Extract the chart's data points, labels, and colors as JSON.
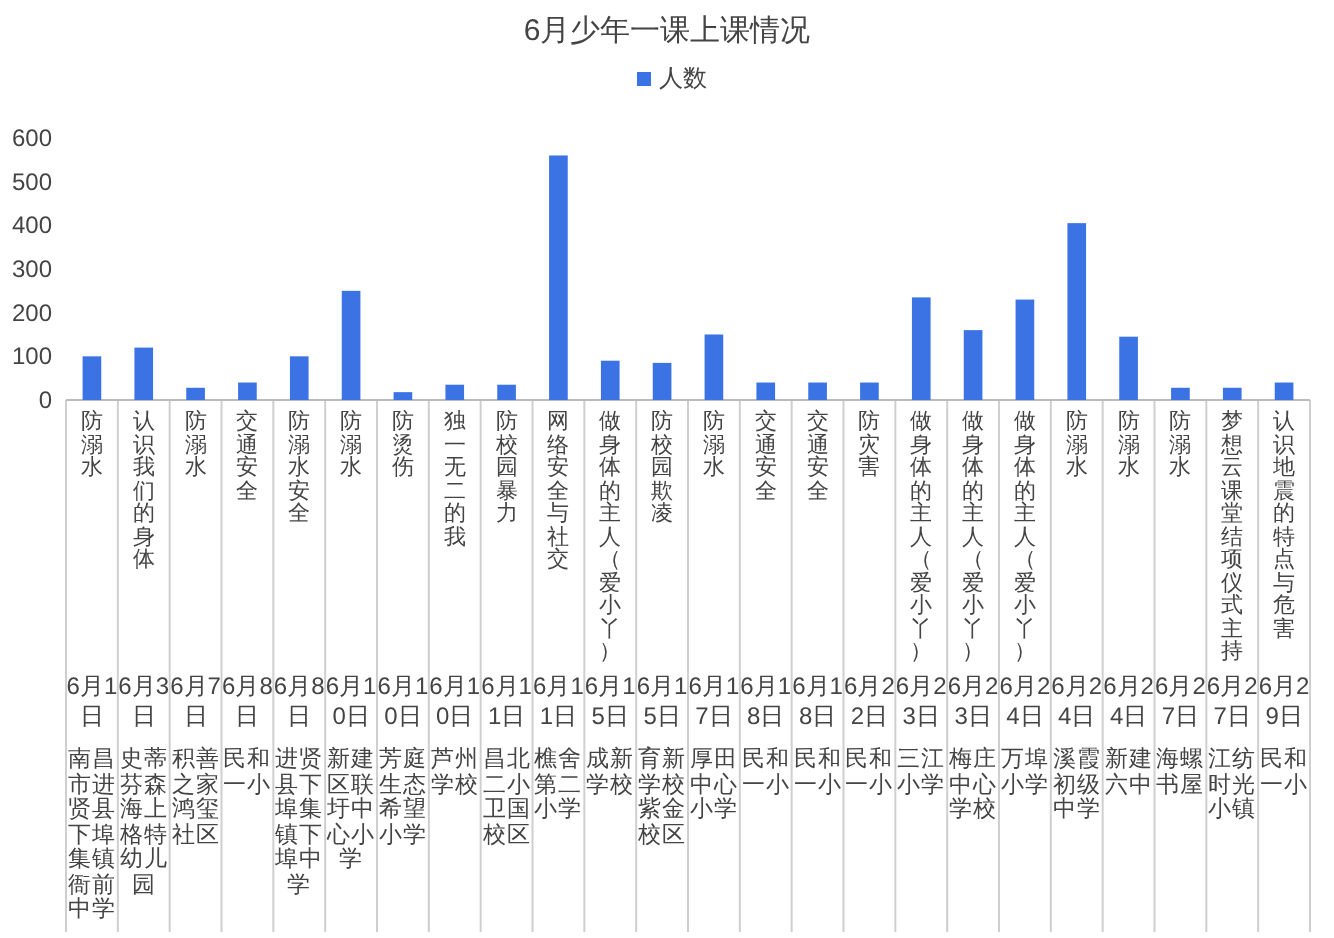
{
  "chart_data": {
    "type": "bar",
    "title": "6月少年一课上课情况",
    "categories": [
      "防溺水",
      "认识我们的身体",
      "防溺水",
      "交通安全",
      "防溺水安全",
      "防溺水",
      "防烫伤",
      "独一无二的我",
      "防校园暴力",
      "网络安全与社交",
      "做身体的主人（爱小丫）",
      "防校园欺凌",
      "防溺水",
      "交通安全",
      "交通安全",
      "防灾害",
      "做身体的主人（爱小丫）",
      "做身体的主人（爱小丫）",
      "做身体的主人（爱小丫）",
      "防溺水",
      "防溺水",
      "防溺水",
      "梦想云课堂结项仪式主持",
      "认识地震的特点与危害"
    ],
    "series": [
      {
        "name": "人数",
        "color": "#3b73e5",
        "values": [
          100,
          120,
          28,
          40,
          100,
          250,
          18,
          35,
          35,
          560,
          90,
          85,
          150,
          40,
          40,
          40,
          235,
          160,
          230,
          405,
          145,
          28,
          28,
          40
        ]
      }
    ],
    "annotations": [
      "6月1日",
      "南昌市进贤县下埠集镇衙前中学",
      "6月3日",
      "史蒂芬森海上格特幼儿园",
      "6月7日",
      "积善之家鸿玺社区",
      "6月8日",
      "民和一小",
      "6月8日",
      "进贤县下埠集镇下埠中学",
      "6月10日",
      "新建区联圩中心小学",
      "6月10日",
      "芳庭生态希望小学",
      "6月10日",
      "芦州学校",
      "6月11日",
      "昌北二小卫国校区",
      "6月11日",
      "樵舍第二小学",
      "6月15日",
      "成新学校",
      "6月15日",
      "育新学校紫金校区",
      "6月17日",
      "厚田中心小学",
      "6月18日",
      "民和一小",
      "6月18日",
      "民和一小",
      "6月22日",
      "民和一小",
      "6月23日",
      "三江小学",
      "6月23日",
      "梅庄中心学校",
      "6月24日",
      "万埠小学",
      "6月24日",
      "溪霞初级中学",
      "6月24日",
      "新建六中",
      "6月27日",
      "海螺书屋",
      "6月27日",
      "江纺时光小镇",
      "6月29日",
      "民和一小"
    ],
    "ylim": [
      0,
      600
    ],
    "yticks": [
      0,
      100,
      200,
      300,
      400,
      500,
      600
    ],
    "grid": false,
    "legend": "top"
  }
}
